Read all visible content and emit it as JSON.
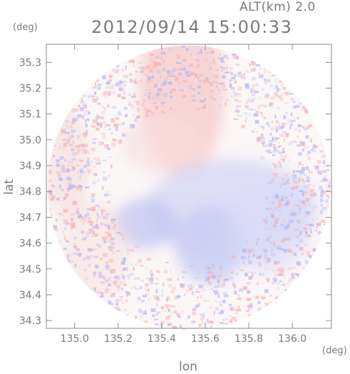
{
  "header": {
    "alt_label": "ALT(km) 2.0",
    "timestamp": "2012/09/14 15:00:33"
  },
  "axes": {
    "y_unit": "(deg)",
    "x_unit": "(deg)",
    "y_label": "lat",
    "x_label": "lon"
  },
  "chart_data": {
    "type": "heatmap",
    "title": "",
    "xlabel": "lon",
    "ylabel": "lat",
    "x_ticks": [
      135.0,
      135.2,
      135.4,
      135.6,
      135.8,
      136.0
    ],
    "x_tick_labels": [
      "135.0",
      "135.2",
      "135.4",
      "135.6",
      "135.8",
      "136.0"
    ],
    "y_ticks": [
      34.3,
      34.4,
      34.5,
      34.6,
      34.7,
      34.8,
      34.9,
      35.0,
      35.1,
      35.2,
      35.3
    ],
    "y_tick_labels": [
      "34.3",
      "34.4",
      "34.5",
      "34.6",
      "34.7",
      "34.8",
      "34.9",
      "35.0",
      "35.1",
      "35.2",
      "35.3"
    ],
    "xlim": [
      134.87,
      136.18
    ],
    "ylim": [
      34.27,
      35.37
    ],
    "grid": false,
    "colors": {
      "positive": "#f5b3b3",
      "negative": "#b3b6f2",
      "neutral": "#fbf7f7",
      "axis": "#8a8a8a"
    },
    "coverage": {
      "center_lon": 135.525,
      "center_lat": 34.815,
      "radius_lon": 0.65,
      "radius_lat": 0.55
    }
  }
}
